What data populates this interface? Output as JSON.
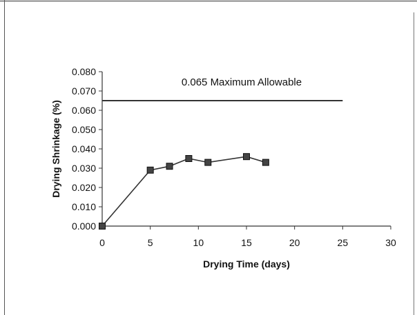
{
  "chart_data": {
    "type": "line",
    "title": "",
    "xlabel": "Drying Time (days)",
    "ylabel": "Drying Shrinkage (%)",
    "xlim": [
      0,
      30
    ],
    "ylim": [
      0,
      0.08
    ],
    "x_ticks": [
      "0",
      "5",
      "10",
      "15",
      "20",
      "25",
      "30"
    ],
    "y_ticks": [
      "0.000",
      "0.010",
      "0.020",
      "0.030",
      "0.040",
      "0.050",
      "0.060",
      "0.070",
      "0.080"
    ],
    "grid": false,
    "legend": "none",
    "series": [
      {
        "marker": "square",
        "color": "#333333",
        "x": [
          0,
          5,
          7,
          9,
          11,
          15,
          17
        ],
        "y": [
          0.0,
          0.029,
          0.031,
          0.035,
          0.033,
          0.036,
          0.033
        ]
      }
    ],
    "reference_line": {
      "y": 0.065,
      "x_range": [
        0,
        25
      ],
      "label": "0.065 Maximum Allowable",
      "color": "#333333"
    }
  }
}
